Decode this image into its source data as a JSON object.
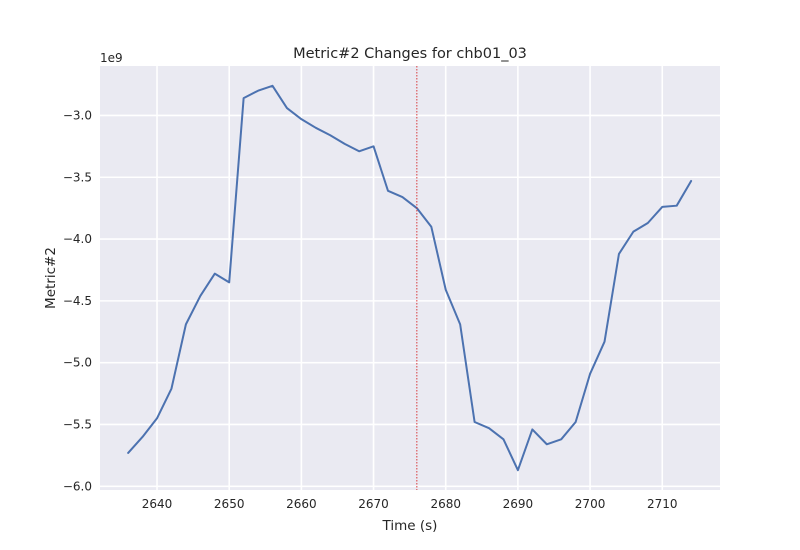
{
  "chart_data": {
    "type": "line",
    "title": "Metric#2 Changes for chb01_03",
    "xlabel": "Time (s)",
    "ylabel": "Metric#2",
    "y_offset_label": "1e9",
    "xlim": [
      2632.1,
      2718.0
    ],
    "ylim": [
      -6.03,
      -2.6
    ],
    "x_ticks": [
      2640,
      2650,
      2660,
      2670,
      2680,
      2690,
      2700,
      2710
    ],
    "y_ticks": [
      -6.0,
      -5.5,
      -5.0,
      -4.5,
      -4.0,
      -3.5,
      -3.0
    ],
    "x_tick_labels": [
      "2640",
      "2650",
      "2660",
      "2670",
      "2680",
      "2690",
      "2700",
      "2710"
    ],
    "y_tick_labels": [
      "−6.0",
      "−5.5",
      "−5.0",
      "−4.5",
      "−4.0",
      "−3.5",
      "−3.0"
    ],
    "grid": true,
    "series": [
      {
        "color": "#4c72b0",
        "x": [
          2636,
          2638,
          2640,
          2642,
          2644,
          2646,
          2648,
          2650,
          2652,
          2654,
          2656,
          2658,
          2660,
          2662,
          2664,
          2666,
          2668,
          2670,
          2672,
          2674,
          2676,
          2678,
          2680,
          2682,
          2684,
          2686,
          2688,
          2690,
          2692,
          2694,
          2696,
          2698,
          2700,
          2702,
          2704,
          2706,
          2708,
          2710,
          2712,
          2714
        ],
        "values": [
          -5.73,
          -5.6,
          -5.45,
          -5.21,
          -4.69,
          -4.46,
          -4.28,
          -4.35,
          -2.86,
          -2.8,
          -2.76,
          -2.94,
          -3.03,
          -3.1,
          -3.16,
          -3.23,
          -3.29,
          -3.25,
          -3.61,
          -3.66,
          -3.75,
          -3.9,
          -4.41,
          -4.69,
          -5.48,
          -5.53,
          -5.62,
          -5.87,
          -5.54,
          -5.66,
          -5.62,
          -5.48,
          -5.09,
          -4.83,
          -4.12,
          -3.94,
          -3.87,
          -3.74,
          -3.73,
          -3.53
        ]
      }
    ],
    "reference_line": {
      "x": 2676,
      "color": "#d62728",
      "style": "dotted"
    }
  }
}
